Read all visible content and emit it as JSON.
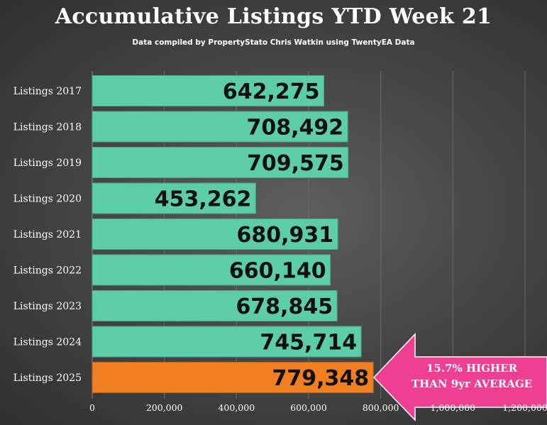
{
  "chart_data": {
    "type": "bar",
    "orientation": "horizontal",
    "title": "Accumulative Listings YTD Week 21",
    "subtitle": "Data compiled by PropertyStato Chris Watkin using TwentyEA Data",
    "categories": [
      "Listings 2017",
      "Listings 2018",
      "Listings 2019",
      "Listings 2020",
      "Listings 2021",
      "Listings 2022",
      "Listings 2023",
      "Listings 2024",
      "Listings 2025"
    ],
    "values": [
      642275,
      708492,
      709575,
      453262,
      680931,
      660140,
      678845,
      745714,
      779348
    ],
    "value_labels": [
      "642,275",
      "708,492",
      "709,575",
      "453,262",
      "680,931",
      "660,140",
      "678,845",
      "745,714",
      "779,348"
    ],
    "xlim": [
      0,
      1200000
    ],
    "xticks": [
      0,
      200000,
      400000,
      600000,
      800000,
      1000000,
      1200000
    ],
    "xtick_labels": [
      "0",
      "200,000",
      "400,000",
      "600,000",
      "800,000",
      "1,000,000",
      "1,200,000"
    ],
    "colors": {
      "default_bar": "#5ccda6",
      "highlight_bar": "#f07f22",
      "callout": "#ef3f93"
    },
    "highlight_index": 8,
    "grid": true,
    "legend": "none",
    "annotation": {
      "line1": "15.7% HIGHER",
      "line2": "THAN 9yr AVERAGE",
      "points_to": "Listings 2025"
    }
  }
}
